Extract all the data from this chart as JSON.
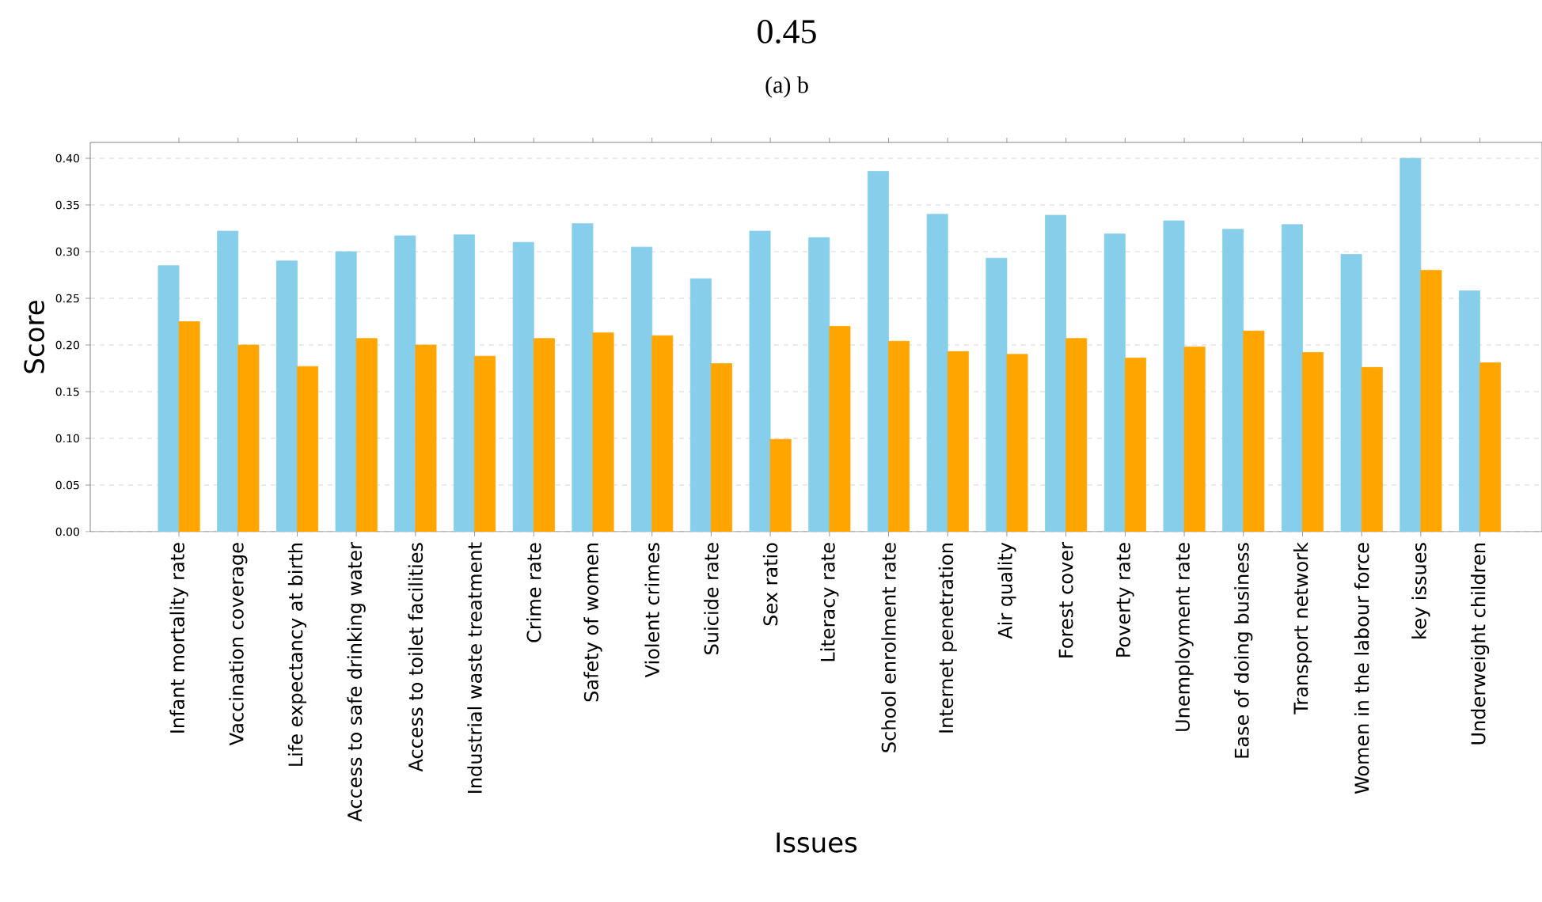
{
  "chart_data": {
    "type": "bar",
    "title": "0.45",
    "subtitle": "(a) b",
    "xlabel": "Issues",
    "ylabel": "Score",
    "categories": [
      "Infant mortality rate",
      "Vaccination coverage",
      "Life expectancy at birth",
      "Access to safe drinking water",
      "Access to toilet facilities",
      "Industrial waste treatment",
      "Crime rate",
      "Safety of women",
      "Violent crimes",
      "Suicide rate",
      "Sex ratio",
      "Literacy rate",
      "School enrolment rate",
      "Internet penetration",
      "Air quality",
      "Forest cover",
      "Poverty rate",
      "Unemployment rate",
      "Ease of doing business",
      "Transport network",
      "Women in the labour force",
      "key issues",
      "Underweight children"
    ],
    "series": [
      {
        "color": "#87ceeb",
        "values": [
          0.285,
          0.322,
          0.29,
          0.3,
          0.317,
          0.318,
          0.31,
          0.33,
          0.305,
          0.271,
          0.322,
          0.315,
          0.386,
          0.34,
          0.293,
          0.339,
          0.319,
          0.333,
          0.324,
          0.329,
          0.297,
          0.4,
          0.258
        ]
      },
      {
        "color": "#ffa500",
        "values": [
          0.225,
          0.2,
          0.177,
          0.207,
          0.2,
          0.188,
          0.207,
          0.213,
          0.21,
          0.18,
          0.099,
          0.22,
          0.204,
          0.193,
          0.19,
          0.207,
          0.186,
          0.198,
          0.215,
          0.192,
          0.176,
          0.28,
          0.181
        ]
      }
    ],
    "ylim": [
      0,
      0.417
    ],
    "yticks": [
      {
        "value": 0,
        "label": "0.00"
      },
      {
        "value": 0.05,
        "label": "0.05"
      },
      {
        "value": 0.1,
        "label": "0.10"
      },
      {
        "value": 0.15,
        "label": "0.15"
      },
      {
        "value": 0.2,
        "label": "0.20"
      },
      {
        "value": 0.25,
        "label": "0.25"
      },
      {
        "value": 0.3,
        "label": "0.30"
      },
      {
        "value": 0.35,
        "label": "0.35"
      },
      {
        "value": 0.4,
        "label": "0.40"
      }
    ],
    "grid": "y"
  }
}
